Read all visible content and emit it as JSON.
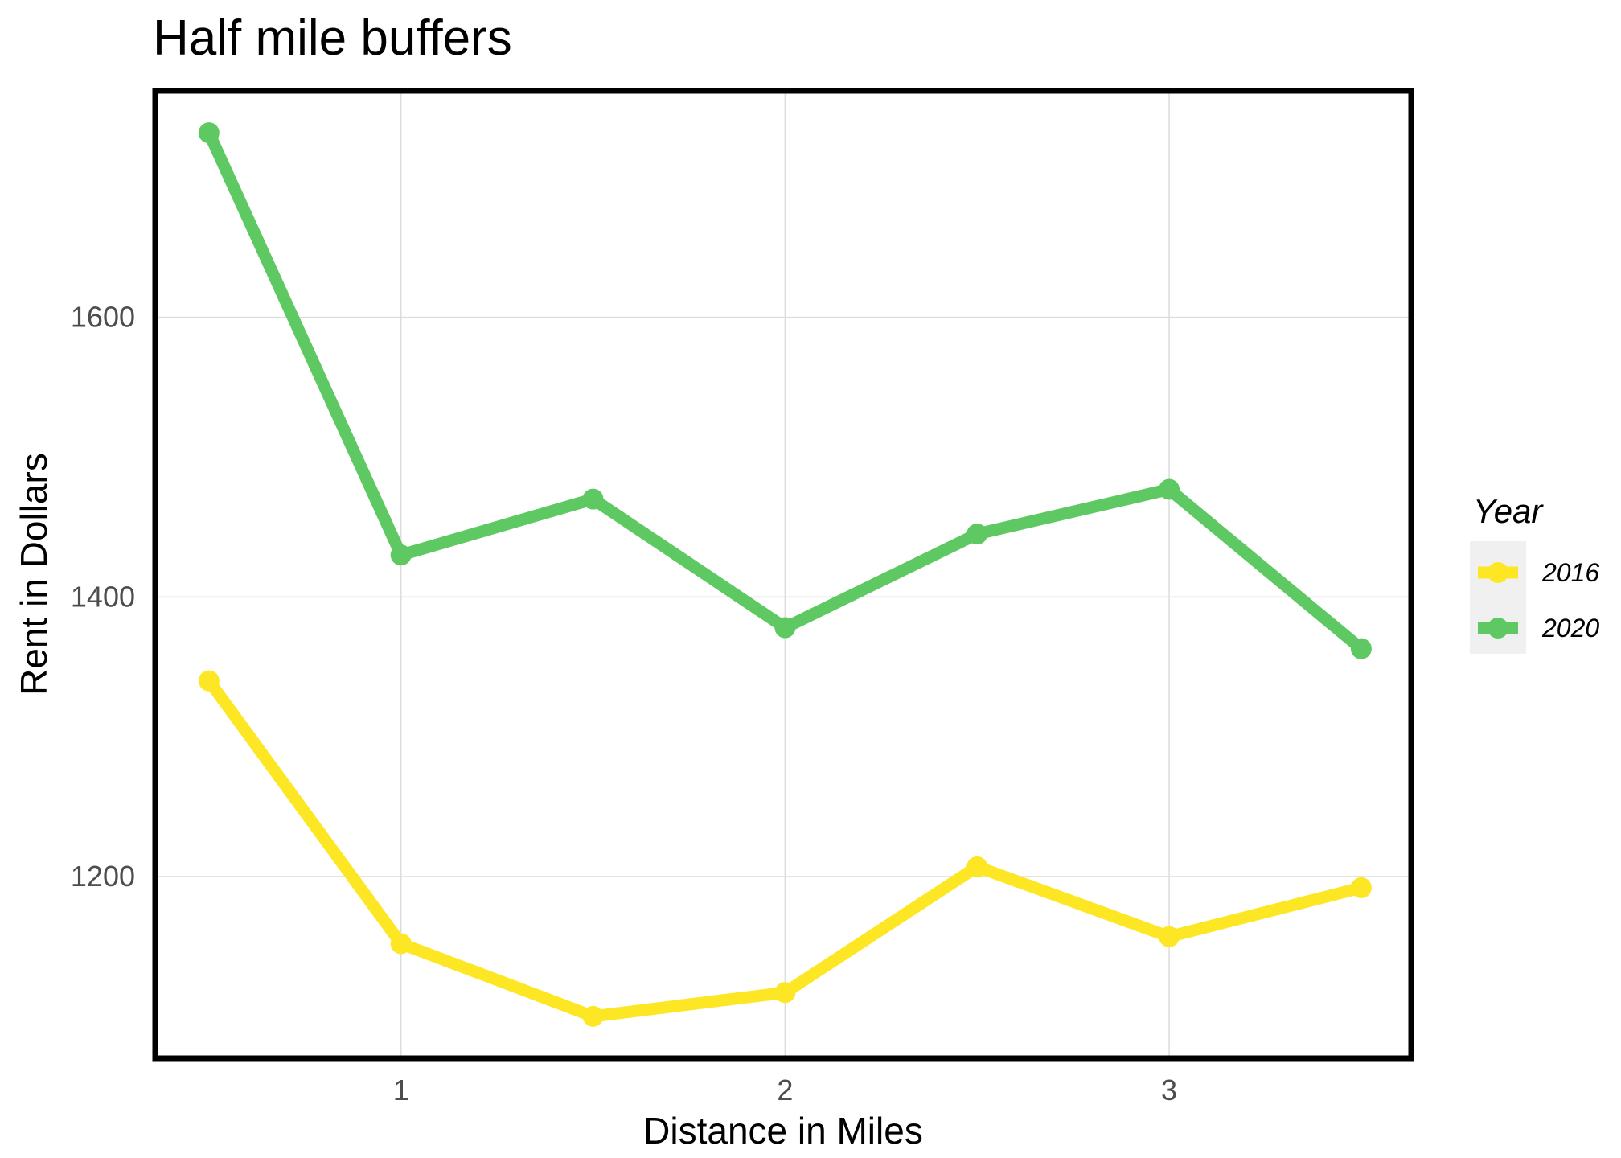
{
  "chart_data": {
    "type": "line",
    "title": "Half mile buffers",
    "xlabel": "Distance in Miles",
    "ylabel": "Rent in Dollars",
    "x": [
      0.5,
      1,
      1.5,
      2,
      2.5,
      3,
      3.5
    ],
    "x_ticks": [
      1,
      2,
      3
    ],
    "y_ticks": [
      1200,
      1400,
      1600
    ],
    "xlim": [
      0.36,
      3.63
    ],
    "ylim": [
      1070,
      1762
    ],
    "grid": true,
    "legend": {
      "title": "Year",
      "placement": "right"
    },
    "series": [
      {
        "name": "2016",
        "color": "#FDE725",
        "values": [
          1340,
          1152,
          1100,
          1117,
          1207,
          1157,
          1192
        ]
      },
      {
        "name": "2020",
        "color": "#5EC962",
        "values": [
          1732,
          1430,
          1470,
          1378,
          1445,
          1477,
          1363
        ]
      }
    ]
  }
}
